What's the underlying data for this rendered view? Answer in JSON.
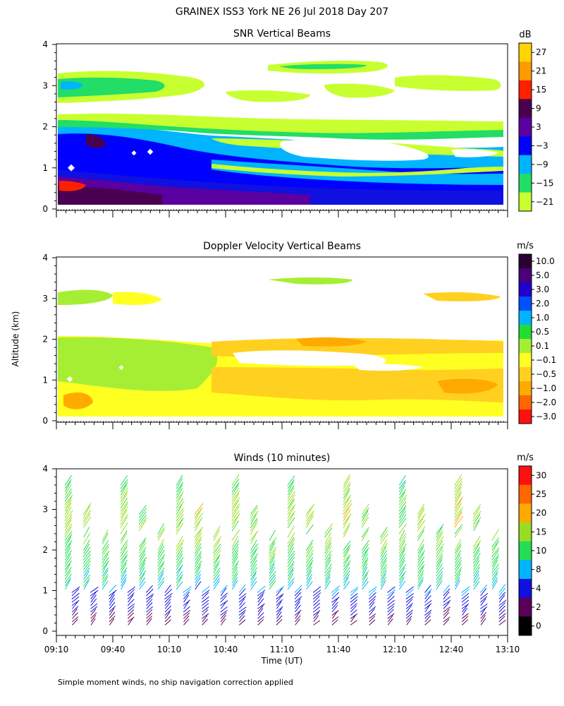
{
  "figure": {
    "title": "GRAINEX ISS3 York NE  26 Jul 2018 Day 207",
    "ylabel": "Altitude (km)",
    "xlabel": "Time (UT)",
    "footnote": "Simple moment winds, no ship navigation correction applied",
    "time_ticks": [
      "09:10",
      "09:40",
      "10:10",
      "10:40",
      "11:10",
      "11:40",
      "12:10",
      "12:40",
      "13:10"
    ],
    "alt_ticks": [
      "0",
      "1",
      "2",
      "3",
      "4"
    ]
  },
  "chart_data": [
    {
      "type": "heatmap",
      "title": "SNR Vertical Beams",
      "xlabel": "Time (UT)",
      "ylabel": "Altitude (km)",
      "xlim": [
        "09:10",
        "13:10"
      ],
      "ylim": [
        0,
        4
      ],
      "colorbar": {
        "unit": "dB",
        "labels": [
          "27",
          "21",
          "15",
          "9",
          "3",
          "−3",
          "−9",
          "−15",
          "−21"
        ],
        "colors": [
          "#ffd400",
          "#ff9a00",
          "#ff2000",
          "#4a0050",
          "#5a00a0",
          "#0000ff",
          "#00b4ff",
          "#22dd66",
          "#c8ff30"
        ]
      },
      "layers": [
        {
          "alt_km": [
            0.1,
            0.45
          ],
          "snr_db": "-3 to 9"
        },
        {
          "alt_km": [
            0.45,
            0.65
          ],
          "snr_db": "15 near 09:10-09:20"
        },
        {
          "alt_km": [
            0.45,
            1.3
          ],
          "snr_db": "-9 to -3"
        },
        {
          "alt_km": [
            1.3,
            2.0
          ],
          "snr_db": "-9 to -3, thinning after 10:40"
        },
        {
          "alt_km": [
            2.0,
            2.3
          ],
          "snr_db": "-15 to -21"
        },
        {
          "alt_km": [
            2.6,
            3.3
          ],
          "snr_db": "-21 to -9 patches"
        },
        {
          "alt_km": [
            3.2,
            3.6
          ],
          "snr_db": "-21 patches"
        }
      ]
    },
    {
      "type": "heatmap",
      "title": "Doppler Velocity Vertical Beams",
      "xlabel": "Time (UT)",
      "ylabel": "Altitude (km)",
      "xlim": [
        "09:10",
        "13:10"
      ],
      "ylim": [
        0,
        4
      ],
      "colorbar": {
        "unit": "m/s",
        "labels": [
          "10.0",
          "5.0",
          "3.0",
          "2.0",
          "1.0",
          "0.5",
          "0.1",
          "−0.1",
          "−0.5",
          "−1.0",
          "−2.0",
          "−3.0"
        ],
        "colors": [
          "#2a0030",
          "#4a007a",
          "#2000cc",
          "#0050ff",
          "#00b4ff",
          "#22dd33",
          "#a6ee33",
          "#ffff22",
          "#ffd020",
          "#ffaa00",
          "#ff6600",
          "#ff1010"
        ]
      },
      "layers": [
        {
          "alt_km": [
            0.1,
            0.9
          ],
          "velocity_ms": "-0.1 to -0.5"
        },
        {
          "alt_km": [
            0.9,
            2.0
          ],
          "velocity_ms": "0.1 to -0.5 mixed"
        },
        {
          "alt_km": [
            1.3,
            2.0
          ],
          "velocity_ms": "-0.5 to -1.0 after 11:00"
        },
        {
          "alt_km": [
            2.6,
            3.3
          ],
          "velocity_ms": "0.1 to -0.5 patches"
        }
      ]
    },
    {
      "type": "wind-barbs",
      "title": "Winds (10 minutes)",
      "xlabel": "Time (UT)",
      "ylabel": "Altitude (km)",
      "xlim": [
        "09:10",
        "13:10"
      ],
      "ylim": [
        0,
        4
      ],
      "colorbar": {
        "unit": "m/s",
        "labels": [
          "30",
          "25",
          "20",
          "15",
          "10",
          "8",
          "4",
          "2",
          "0"
        ],
        "colors": [
          "#ff1010",
          "#ff6600",
          "#ffaa00",
          "#99dd22",
          "#22dd55",
          "#00b4ff",
          "#1010e0",
          "#5a005a",
          "#000000"
        ]
      },
      "profile_interval_min": 10,
      "speed_profile": [
        {
          "alt_km": 0.2,
          "speed_ms": 3
        },
        {
          "alt_km": 0.6,
          "speed_ms": 5
        },
        {
          "alt_km": 1.0,
          "speed_ms": 9
        },
        {
          "alt_km": 1.5,
          "speed_ms": 12
        },
        {
          "alt_km": 2.0,
          "speed_ms": 15
        },
        {
          "alt_km": 2.8,
          "speed_ms": 17
        },
        {
          "alt_km": 3.5,
          "speed_ms": 14
        }
      ]
    }
  ]
}
